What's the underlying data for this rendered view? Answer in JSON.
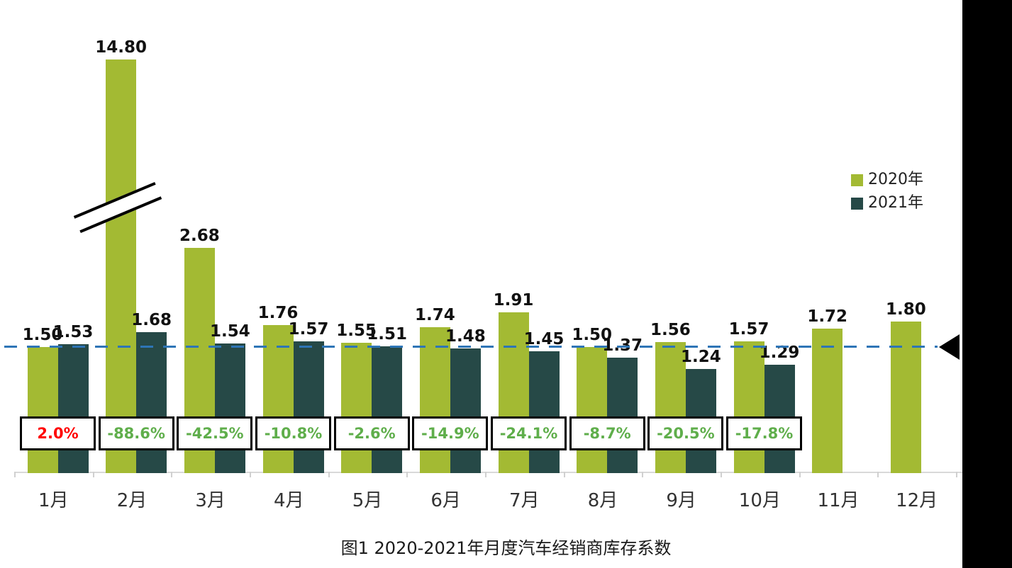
{
  "chart_data": {
    "type": "bar",
    "title": "图1  2020-2021年月度汽车经销商库存系数",
    "categories": [
      "1月",
      "2月",
      "3月",
      "4月",
      "5月",
      "6月",
      "7月",
      "8月",
      "9月",
      "10月",
      "11月",
      "12月"
    ],
    "series": [
      {
        "name": "2020年",
        "color": "#A3BA33",
        "values": [
          1.5,
          14.8,
          2.68,
          1.76,
          1.55,
          1.74,
          1.91,
          1.5,
          1.56,
          1.57,
          1.72,
          1.8
        ],
        "labels": [
          "1.50",
          "14.80",
          "2.68",
          "1.76",
          "1.55",
          "1.74",
          "1.91",
          "1.50",
          "1.56",
          "1.57",
          "1.72",
          "1.80"
        ]
      },
      {
        "name": "2021年",
        "color": "#264947",
        "values": [
          1.53,
          1.68,
          1.54,
          1.57,
          1.51,
          1.48,
          1.45,
          1.37,
          1.24,
          1.29,
          null,
          null
        ],
        "labels": [
          "1.53",
          "1.68",
          "1.54",
          "1.57",
          "1.51",
          "1.48",
          "1.45",
          "1.37",
          "1.24",
          "1.29",
          null,
          null
        ]
      }
    ],
    "yoy_change": {
      "labels": [
        "2.0%",
        "-88.6%",
        "-42.5%",
        "-10.8%",
        "-2.6%",
        "-14.9%",
        "-24.1%",
        "-8.7%",
        "-20.5%",
        "-17.8%"
      ],
      "positive_color": "#FF0000",
      "negative_color": "#5FAE4B"
    },
    "reference_line": {
      "value": 1.5,
      "color": "#2E75B6",
      "marker": "left-pointing-black-triangle"
    },
    "axis_break": {
      "series": "2020年",
      "category": "2月",
      "clipped_value": 14.8
    },
    "legend": {
      "position": "right",
      "entries": [
        "2020年",
        "2021年"
      ]
    },
    "ylim": [
      0,
      1.95
    ],
    "grid": false,
    "xlabel": "",
    "ylabel": ""
  }
}
